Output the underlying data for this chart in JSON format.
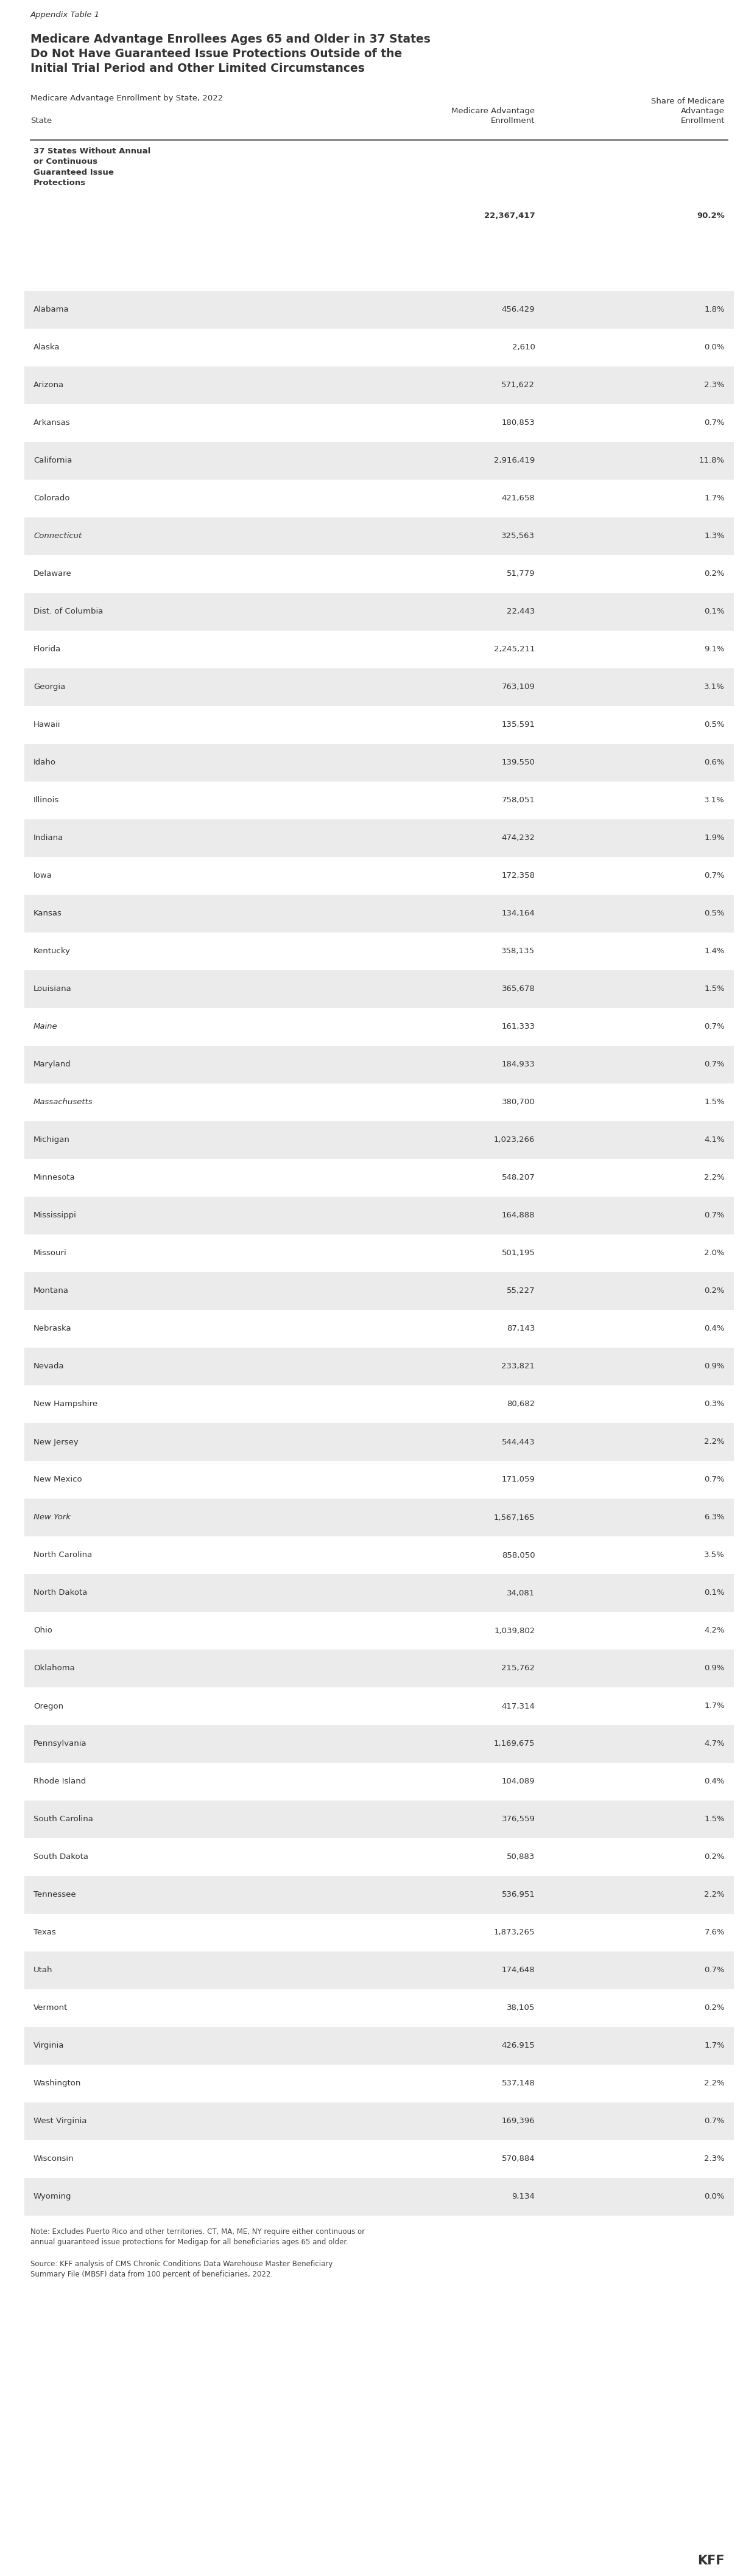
{
  "appendix_label": "Appendix Table 1",
  "title": "Medicare Advantage Enrollees Ages 65 and Older in 37 States\nDo Not Have Guaranteed Issue Protections Outside of the\nInitial Trial Period and Other Limited Circumstances",
  "subtitle": "Medicare Advantage Enrollment by State, 2022",
  "col1_header": "State",
  "col2_header": "Medicare Advantage\nEnrollment",
  "col3_header": "Share of Medicare\nAdvantage\nEnrollment",
  "note": "Note: Excludes Puerto Rico and other territories. CT, MA, ME, NY require either continuous or\nannual guaranteed issue protections for Medigap for all beneficiaries ages 65 and older.\n\nSource: KFF analysis of CMS Chronic Conditions Data Warehouse Master Beneficiary\nSummary File (MBSF) data from 100 percent of beneficiaries, 2022.",
  "footer_logo": "KFF",
  "rows": [
    {
      "state": "37 States Without Annual\nor Continuous\nGuaranteed Issue\nProtections",
      "enrollment": "22,367,417",
      "share": "90.2%",
      "bold": true,
      "bg": "#ffffff"
    },
    {
      "state": "Alabama",
      "enrollment": "456,429",
      "share": "1.8%",
      "bold": false,
      "bg": "#ebebeb"
    },
    {
      "state": "Alaska",
      "enrollment": "2,610",
      "share": "0.0%",
      "bold": false,
      "bg": "#ffffff"
    },
    {
      "state": "Arizona",
      "enrollment": "571,622",
      "share": "2.3%",
      "bold": false,
      "bg": "#ebebeb"
    },
    {
      "state": "Arkansas",
      "enrollment": "180,853",
      "share": "0.7%",
      "bold": false,
      "bg": "#ffffff"
    },
    {
      "state": "California",
      "enrollment": "2,916,419",
      "share": "11.8%",
      "bold": false,
      "bg": "#ebebeb"
    },
    {
      "state": "Colorado",
      "enrollment": "421,658",
      "share": "1.7%",
      "bold": false,
      "bg": "#ffffff"
    },
    {
      "state": "Connecticut",
      "enrollment": "325,563",
      "share": "1.3%",
      "bold": false,
      "bg": "#ebebeb",
      "italic": true
    },
    {
      "state": "Delaware",
      "enrollment": "51,779",
      "share": "0.2%",
      "bold": false,
      "bg": "#ffffff"
    },
    {
      "state": "Dist. of Columbia",
      "enrollment": "22,443",
      "share": "0.1%",
      "bold": false,
      "bg": "#ebebeb"
    },
    {
      "state": "Florida",
      "enrollment": "2,245,211",
      "share": "9.1%",
      "bold": false,
      "bg": "#ffffff"
    },
    {
      "state": "Georgia",
      "enrollment": "763,109",
      "share": "3.1%",
      "bold": false,
      "bg": "#ebebeb"
    },
    {
      "state": "Hawaii",
      "enrollment": "135,591",
      "share": "0.5%",
      "bold": false,
      "bg": "#ffffff"
    },
    {
      "state": "Idaho",
      "enrollment": "139,550",
      "share": "0.6%",
      "bold": false,
      "bg": "#ebebeb"
    },
    {
      "state": "Illinois",
      "enrollment": "758,051",
      "share": "3.1%",
      "bold": false,
      "bg": "#ffffff"
    },
    {
      "state": "Indiana",
      "enrollment": "474,232",
      "share": "1.9%",
      "bold": false,
      "bg": "#ebebeb"
    },
    {
      "state": "Iowa",
      "enrollment": "172,358",
      "share": "0.7%",
      "bold": false,
      "bg": "#ffffff"
    },
    {
      "state": "Kansas",
      "enrollment": "134,164",
      "share": "0.5%",
      "bold": false,
      "bg": "#ebebeb"
    },
    {
      "state": "Kentucky",
      "enrollment": "358,135",
      "share": "1.4%",
      "bold": false,
      "bg": "#ffffff"
    },
    {
      "state": "Louisiana",
      "enrollment": "365,678",
      "share": "1.5%",
      "bold": false,
      "bg": "#ebebeb"
    },
    {
      "state": "Maine",
      "enrollment": "161,333",
      "share": "0.7%",
      "bold": false,
      "bg": "#ffffff",
      "italic": true
    },
    {
      "state": "Maryland",
      "enrollment": "184,933",
      "share": "0.7%",
      "bold": false,
      "bg": "#ebebeb"
    },
    {
      "state": "Massachusetts",
      "enrollment": "380,700",
      "share": "1.5%",
      "bold": false,
      "bg": "#ffffff",
      "italic": true
    },
    {
      "state": "Michigan",
      "enrollment": "1,023,266",
      "share": "4.1%",
      "bold": false,
      "bg": "#ebebeb"
    },
    {
      "state": "Minnesota",
      "enrollment": "548,207",
      "share": "2.2%",
      "bold": false,
      "bg": "#ffffff"
    },
    {
      "state": "Mississippi",
      "enrollment": "164,888",
      "share": "0.7%",
      "bold": false,
      "bg": "#ebebeb"
    },
    {
      "state": "Missouri",
      "enrollment": "501,195",
      "share": "2.0%",
      "bold": false,
      "bg": "#ffffff"
    },
    {
      "state": "Montana",
      "enrollment": "55,227",
      "share": "0.2%",
      "bold": false,
      "bg": "#ebebeb"
    },
    {
      "state": "Nebraska",
      "enrollment": "87,143",
      "share": "0.4%",
      "bold": false,
      "bg": "#ffffff"
    },
    {
      "state": "Nevada",
      "enrollment": "233,821",
      "share": "0.9%",
      "bold": false,
      "bg": "#ebebeb"
    },
    {
      "state": "New Hampshire",
      "enrollment": "80,682",
      "share": "0.3%",
      "bold": false,
      "bg": "#ffffff"
    },
    {
      "state": "New Jersey",
      "enrollment": "544,443",
      "share": "2.2%",
      "bold": false,
      "bg": "#ebebeb"
    },
    {
      "state": "New Mexico",
      "enrollment": "171,059",
      "share": "0.7%",
      "bold": false,
      "bg": "#ffffff"
    },
    {
      "state": "New York",
      "enrollment": "1,567,165",
      "share": "6.3%",
      "bold": false,
      "bg": "#ebebeb",
      "italic": true
    },
    {
      "state": "North Carolina",
      "enrollment": "858,050",
      "share": "3.5%",
      "bold": false,
      "bg": "#ffffff"
    },
    {
      "state": "North Dakota",
      "enrollment": "34,081",
      "share": "0.1%",
      "bold": false,
      "bg": "#ebebeb"
    },
    {
      "state": "Ohio",
      "enrollment": "1,039,802",
      "share": "4.2%",
      "bold": false,
      "bg": "#ffffff"
    },
    {
      "state": "Oklahoma",
      "enrollment": "215,762",
      "share": "0.9%",
      "bold": false,
      "bg": "#ebebeb"
    },
    {
      "state": "Oregon",
      "enrollment": "417,314",
      "share": "1.7%",
      "bold": false,
      "bg": "#ffffff"
    },
    {
      "state": "Pennsylvania",
      "enrollment": "1,169,675",
      "share": "4.7%",
      "bold": false,
      "bg": "#ebebeb"
    },
    {
      "state": "Rhode Island",
      "enrollment": "104,089",
      "share": "0.4%",
      "bold": false,
      "bg": "#ffffff"
    },
    {
      "state": "South Carolina",
      "enrollment": "376,559",
      "share": "1.5%",
      "bold": false,
      "bg": "#ebebeb"
    },
    {
      "state": "South Dakota",
      "enrollment": "50,883",
      "share": "0.2%",
      "bold": false,
      "bg": "#ffffff"
    },
    {
      "state": "Tennessee",
      "enrollment": "536,951",
      "share": "2.2%",
      "bold": false,
      "bg": "#ebebeb"
    },
    {
      "state": "Texas",
      "enrollment": "1,873,265",
      "share": "7.6%",
      "bold": false,
      "bg": "#ffffff"
    },
    {
      "state": "Utah",
      "enrollment": "174,648",
      "share": "0.7%",
      "bold": false,
      "bg": "#ebebeb"
    },
    {
      "state": "Vermont",
      "enrollment": "38,105",
      "share": "0.2%",
      "bold": false,
      "bg": "#ffffff"
    },
    {
      "state": "Virginia",
      "enrollment": "426,915",
      "share": "1.7%",
      "bold": false,
      "bg": "#ebebeb"
    },
    {
      "state": "Washington",
      "enrollment": "537,148",
      "share": "2.2%",
      "bold": false,
      "bg": "#ffffff"
    },
    {
      "state": "West Virginia",
      "enrollment": "169,396",
      "share": "0.7%",
      "bold": false,
      "bg": "#ebebeb"
    },
    {
      "state": "Wisconsin",
      "enrollment": "570,884",
      "share": "2.3%",
      "bold": false,
      "bg": "#ffffff"
    },
    {
      "state": "Wyoming",
      "enrollment": "9,134",
      "share": "0.0%",
      "bold": false,
      "bg": "#ebebeb"
    }
  ],
  "bg_color": "#ffffff",
  "header_line_color": "#333333",
  "text_color": "#333333",
  "note_color": "#444444"
}
